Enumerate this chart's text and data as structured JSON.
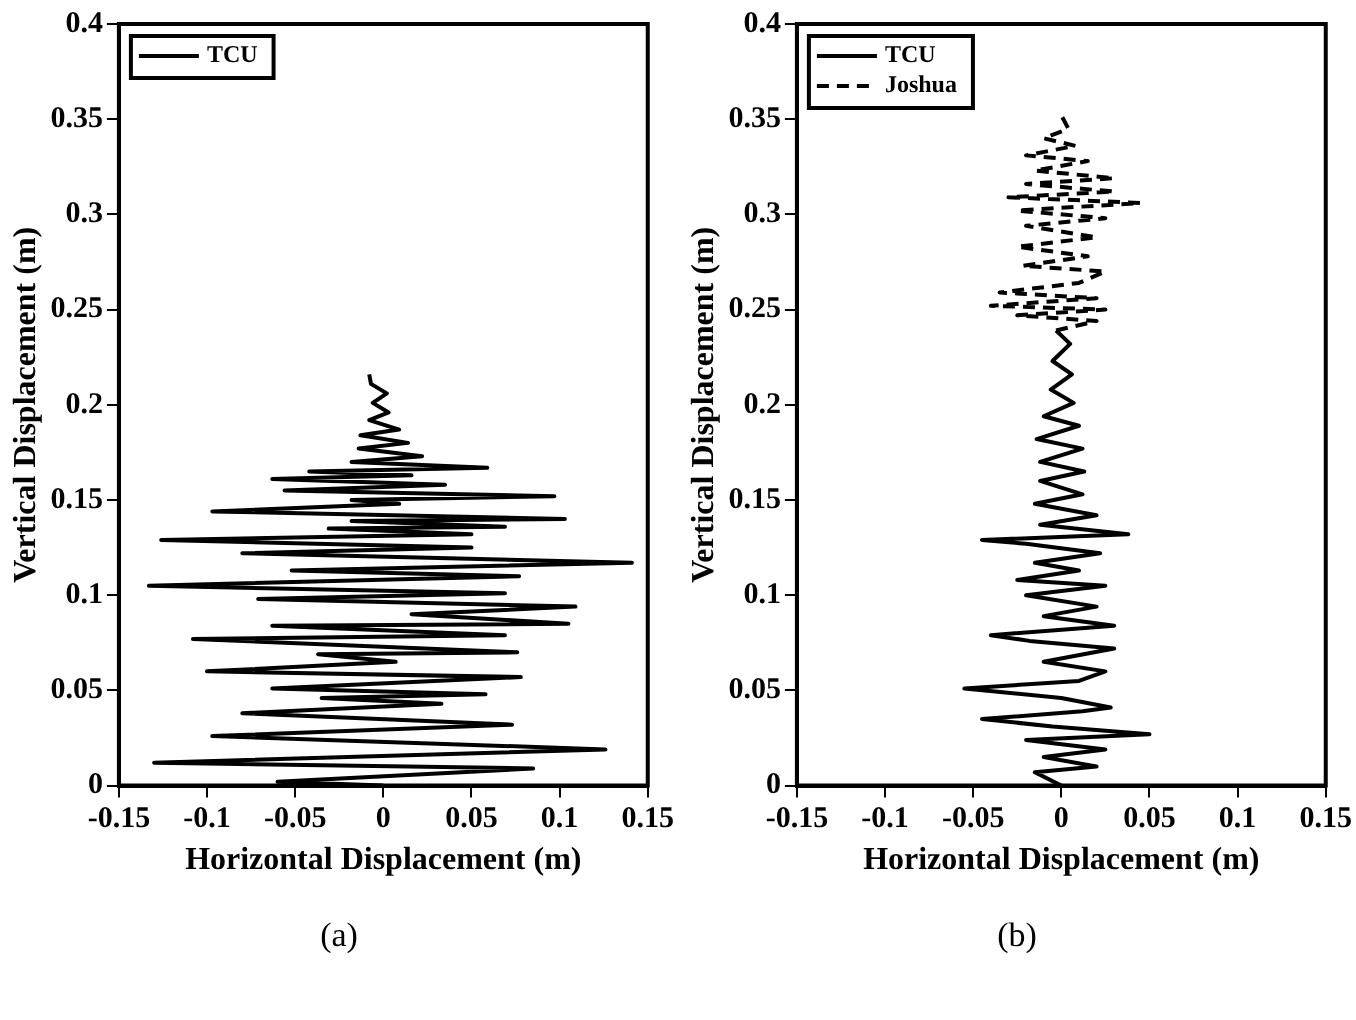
{
  "chart_data": [
    {
      "type": "line",
      "xlabel": "Horizontal Displacement (m)",
      "ylabel": "Vertical Displacement (m)",
      "xlim": [
        -0.15,
        0.15
      ],
      "ylim": [
        0,
        0.4
      ],
      "xticks": [
        -0.15,
        -0.1,
        -0.05,
        0,
        0.05,
        0.1,
        0.15
      ],
      "yticks": [
        0,
        0.05,
        0.1,
        0.15,
        0.2,
        0.25,
        0.3,
        0.35,
        0.4
      ],
      "legend": "top left",
      "annotations": [
        "(a)"
      ],
      "series": [
        {
          "name": "TCU",
          "color": "#000000",
          "line_style": "solid",
          "x": [
            0,
            -0.06,
            0.085,
            -0.13,
            0.126,
            -0.097,
            0.073,
            -0.08,
            0.033,
            -0.035,
            0.058,
            -0.063,
            0.078,
            -0.1,
            0.007,
            -0.037,
            0.076,
            -0.108,
            0.069,
            -0.063,
            0.105,
            0.016,
            0.109,
            -0.071,
            0.069,
            -0.133,
            0.077,
            -0.052,
            0.141,
            -0.08,
            0.05,
            -0.126,
            0.05,
            -0.031,
            0.069,
            -0.018,
            0.103,
            -0.097,
            0.009,
            -0.018,
            0.097,
            -0.056,
            0.035,
            -0.063,
            0.016,
            -0.042,
            0.059,
            -0.018,
            0.022,
            -0.014,
            0.014,
            -0.013,
            0.009,
            -0.008,
            0.003,
            -0.006,
            0.002,
            -0.007,
            -0.008
          ],
          "values": [
            0,
            0.002,
            0.009,
            0.012,
            0.019,
            0.026,
            0.032,
            0.038,
            0.043,
            0.046,
            0.048,
            0.051,
            0.057,
            0.06,
            0.065,
            0.069,
            0.07,
            0.077,
            0.079,
            0.084,
            0.085,
            0.09,
            0.094,
            0.098,
            0.101,
            0.105,
            0.11,
            0.113,
            0.117,
            0.122,
            0.125,
            0.129,
            0.132,
            0.135,
            0.136,
            0.139,
            0.14,
            0.144,
            0.148,
            0.15,
            0.152,
            0.155,
            0.158,
            0.161,
            0.163,
            0.165,
            0.167,
            0.17,
            0.173,
            0.177,
            0.18,
            0.184,
            0.187,
            0.192,
            0.196,
            0.201,
            0.206,
            0.211,
            0.216
          ]
        }
      ]
    },
    {
      "type": "line",
      "xlabel": "Horizontal Displacement (m)",
      "ylabel": "Vertical Displacement (m)",
      "xlim": [
        -0.15,
        0.15
      ],
      "ylim": [
        0,
        0.4
      ],
      "xticks": [
        -0.15,
        -0.1,
        -0.05,
        0,
        0.05,
        0.1,
        0.15
      ],
      "yticks": [
        0,
        0.05,
        0.1,
        0.15,
        0.2,
        0.25,
        0.3,
        0.35,
        0.4
      ],
      "legend": "top left",
      "annotations": [
        "(b)"
      ],
      "series": [
        {
          "name": "TCU",
          "color": "#000000",
          "line_style": "solid",
          "x": [
            0,
            -0.015,
            0.02,
            -0.01,
            0.025,
            -0.02,
            0.05,
            -0.005,
            -0.045,
            0.012,
            0.028,
            0,
            -0.055,
            0.01,
            0.025,
            -0.01,
            0.03,
            -0.018,
            -0.04,
            0.03,
            -0.01,
            0.02,
            -0.02,
            0.025,
            -0.025,
            0.01,
            -0.015,
            0.022,
            -0.02,
            -0.045,
            0.038,
            -0.012,
            0.02,
            -0.015,
            0.012,
            -0.012,
            0.013,
            -0.012,
            0.012,
            -0.014,
            0.01,
            -0.01,
            0.007,
            -0.006,
            0.006,
            -0.005,
            0.005,
            -0.003
          ],
          "values": [
            0,
            0.007,
            0.01,
            0.015,
            0.019,
            0.024,
            0.027,
            0.031,
            0.035,
            0.039,
            0.041,
            0.046,
            0.051,
            0.055,
            0.06,
            0.065,
            0.072,
            0.076,
            0.079,
            0.084,
            0.089,
            0.094,
            0.1,
            0.105,
            0.108,
            0.113,
            0.117,
            0.122,
            0.127,
            0.129,
            0.132,
            0.137,
            0.142,
            0.148,
            0.153,
            0.16,
            0.165,
            0.17,
            0.177,
            0.182,
            0.189,
            0.194,
            0.201,
            0.208,
            0.216,
            0.223,
            0.232,
            0.239
          ]
        },
        {
          "name": "Joshua",
          "color": "#000000",
          "line_style": "dashed",
          "x": [
            -0.003,
            0.02,
            -0.025,
            0.025,
            -0.04,
            0.02,
            -0.035,
            0.01,
            0.025,
            -0.022,
            0.015,
            -0.025,
            0.02,
            -0.02,
            0.025,
            -0.025,
            0.045,
            -0.03,
            0.03,
            -0.02,
            0.03,
            -0.015,
            0.015,
            -0.02,
            0.008,
            -0.01,
            0.004,
            0
          ],
          "values": [
            0.239,
            0.244,
            0.247,
            0.25,
            0.252,
            0.256,
            0.259,
            0.264,
            0.27,
            0.273,
            0.278,
            0.283,
            0.288,
            0.294,
            0.298,
            0.302,
            0.306,
            0.309,
            0.312,
            0.316,
            0.319,
            0.323,
            0.328,
            0.331,
            0.336,
            0.34,
            0.345,
            0.352
          ]
        }
      ]
    }
  ]
}
